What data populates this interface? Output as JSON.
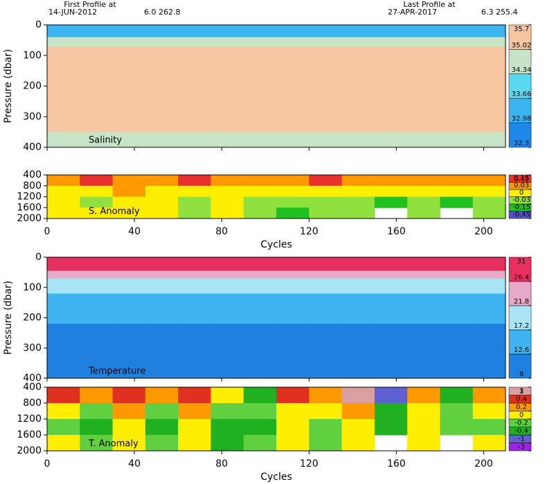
{
  "header": {
    "first_title": "First Profile at",
    "first_date": "14-JUN-2012",
    "first_pos": "6.0 262.8",
    "last_title": "Last Profile at",
    "last_date": "27-APR-2017",
    "last_pos": "6.3 255.4"
  },
  "chart_data": [
    {
      "type": "heatmap",
      "label": "Salinity",
      "ylabel": "Pressure (dbar)",
      "xlim": [
        0,
        210
      ],
      "xticks": [
        0,
        40,
        80,
        120,
        160,
        200
      ],
      "ylim": [
        400,
        0
      ],
      "yticks": [
        0,
        100,
        200,
        300,
        400
      ],
      "x_edges": [
        0,
        15,
        30,
        45,
        60,
        75,
        90,
        105,
        120,
        135,
        150,
        165,
        180,
        195,
        210
      ],
      "y_edges": [
        0,
        40,
        70,
        120,
        250,
        350,
        400
      ],
      "z": [
        [
          33.4,
          33.5,
          33.3,
          33.6,
          33.4,
          33.2,
          33.5,
          33.6,
          33.3,
          33.4,
          33.5,
          33.3,
          33.4,
          33.5
        ],
        [
          34.5,
          34.7,
          34.6,
          34.4,
          34.8,
          34.6,
          34.5,
          34.7,
          34.6,
          34.5,
          34.8,
          34.6,
          34.7,
          34.5
        ],
        [
          35.1,
          35.2,
          35.1,
          35.3,
          35.2,
          35.1,
          35.2,
          35.1,
          35.2,
          35.3,
          35.1,
          35.2,
          35.1,
          35.2
        ],
        [
          35.2,
          35.3,
          35.2,
          35.2,
          35.3,
          35.2,
          35.3,
          35.2,
          35.2,
          35.3,
          35.2,
          35.3,
          35.2,
          35.2
        ],
        [
          35.1,
          35.1,
          35.2,
          35.1,
          35.1,
          35.2,
          35.1,
          35.1,
          35.1,
          35.2,
          35.1,
          35.1,
          35.2,
          35.1
        ],
        [
          34.9,
          35.0,
          34.8,
          35.0,
          34.9,
          35.0,
          34.9,
          34.8,
          35.0,
          34.9,
          35.0,
          34.9,
          34.8,
          34.9
        ]
      ],
      "colorbar": {
        "levels": [
          32.3,
          32.98,
          33.66,
          34.34,
          35.02,
          35.7
        ],
        "colors": [
          "#1e88e8",
          "#3cb4f0",
          "#5ad8f0",
          "#c8e4c8",
          "#f5c6a0"
        ]
      }
    },
    {
      "type": "heatmap",
      "label": "S. Anomaly",
      "xlabel": "Cycles",
      "xlim": [
        0,
        210
      ],
      "xticks": [
        0,
        40,
        80,
        120,
        160,
        200
      ],
      "ylim": [
        2000,
        400
      ],
      "yticks": [
        400,
        800,
        1200,
        1600,
        2000
      ],
      "x_edges": [
        0,
        15,
        30,
        45,
        60,
        75,
        90,
        105,
        120,
        135,
        150,
        165,
        180,
        195,
        210
      ],
      "y_edges": [
        400,
        800,
        1200,
        1600,
        2000
      ],
      "z": [
        [
          0.1,
          0.2,
          0.12,
          0.08,
          0.2,
          0.1,
          0.05,
          0.1,
          0.2,
          0.08,
          0.1,
          0.12,
          0.06,
          0.1
        ],
        [
          0.02,
          0.01,
          0.04,
          0.02,
          0.01,
          0.02,
          0.01,
          0.02,
          0.01,
          0.02,
          0.01,
          0.02,
          0.01,
          0.02
        ],
        [
          0.01,
          -0.01,
          0.02,
          0.01,
          -0.02,
          0.01,
          -0.01,
          -0.02,
          -0.01,
          -0.02,
          -0.05,
          -0.02,
          -0.05,
          -0.02
        ],
        [
          0.01,
          0.01,
          0.02,
          0.01,
          -0.01,
          0.01,
          -0.02,
          -0.05,
          -0.02,
          -0.01,
          null,
          -0.02,
          null,
          -0.01
        ]
      ],
      "colorbar": {
        "levels": [
          -0.45,
          -0.15,
          -0.03,
          0,
          0.03,
          0.15,
          0.45
        ],
        "colors": [
          "#5050d0",
          "#20c020",
          "#90e040",
          "#ffee00",
          "#ff9900",
          "#e83030"
        ]
      }
    },
    {
      "type": "heatmap",
      "label": "Temperature",
      "ylabel": "Pressure (dbar)",
      "xlim": [
        0,
        210
      ],
      "xticks": [
        0,
        40,
        80,
        120,
        160,
        200
      ],
      "ylim": [
        400,
        0
      ],
      "yticks": [
        0,
        100,
        200,
        300,
        400
      ],
      "x_edges": [
        0,
        15,
        30,
        45,
        60,
        75,
        90,
        105,
        120,
        135,
        150,
        165,
        180,
        195,
        210
      ],
      "y_edges": [
        0,
        45,
        70,
        120,
        220,
        330,
        400
      ],
      "z": [
        [
          28.5,
          28.8,
          28.4,
          28.9,
          28.6,
          28.3,
          28.7,
          28.9,
          28.5,
          28.6,
          28.8,
          28.4,
          28.6,
          28.7
        ],
        [
          23.0,
          22.5,
          24.0,
          22.8,
          23.5,
          22.2,
          23.8,
          22.6,
          23.1,
          22.4,
          23.6,
          22.9,
          23.3,
          22.7
        ],
        [
          17.8,
          18.2,
          17.5,
          18.6,
          17.9,
          18.4,
          17.6,
          18.1,
          17.4,
          18.3,
          17.7,
          18.5,
          17.9,
          18.0
        ],
        [
          14.2,
          13.8,
          14.6,
          14.0,
          13.6,
          14.4,
          14.1,
          13.9,
          13.4,
          14.3,
          14.0,
          13.7,
          14.5,
          14.1
        ],
        [
          12.0,
          11.6,
          12.2,
          11.8,
          11.4,
          12.1,
          11.9,
          11.5,
          11.2,
          12.0,
          11.7,
          11.8,
          12.1,
          11.6
        ],
        [
          10.8,
          10.5,
          11.0,
          10.6,
          10.2,
          10.9,
          10.7,
          10.4,
          10.1,
          10.8,
          10.5,
          10.6,
          10.9,
          10.4
        ]
      ],
      "colorbar": {
        "levels": [
          8,
          12.6,
          17.2,
          21.8,
          26.4,
          31
        ],
        "colors": [
          "#2080e0",
          "#40b4f0",
          "#a8e4f4",
          "#e8a8c8",
          "#e83060"
        ]
      }
    },
    {
      "type": "heatmap",
      "label": "T. Anomaly",
      "xlabel": "Cycles",
      "xlim": [
        0,
        210
      ],
      "xticks": [
        0,
        40,
        80,
        120,
        160,
        200
      ],
      "ylim": [
        2000,
        400
      ],
      "yticks": [
        400,
        800,
        1200,
        1600,
        2000
      ],
      "x_edges": [
        0,
        15,
        30,
        45,
        60,
        75,
        90,
        105,
        120,
        135,
        150,
        165,
        180,
        195,
        210
      ],
      "y_edges": [
        400,
        800,
        1200,
        1600,
        2000
      ],
      "z": [
        [
          0.5,
          0.3,
          0.6,
          0.2,
          0.8,
          0.1,
          -0.3,
          0.4,
          0.3,
          1.2,
          -0.5,
          0.3,
          -0.3,
          0.2
        ],
        [
          0.1,
          -0.1,
          0.2,
          -0.1,
          0.3,
          -0.1,
          -0.2,
          0.1,
          0.1,
          0.3,
          -0.3,
          0.1,
          -0.1,
          0.1
        ],
        [
          -0.1,
          -0.3,
          0.1,
          -0.3,
          0.1,
          -0.3,
          -0.3,
          0.1,
          -0.1,
          0.1,
          -0.3,
          0.1,
          -0.1,
          -0.1
        ],
        [
          0.1,
          -0.1,
          0.1,
          -0.1,
          0.1,
          -0.3,
          -0.1,
          0.1,
          -0.1,
          0.1,
          null,
          0.1,
          null,
          0.1
        ]
      ],
      "colorbar": {
        "levels": [
          -3,
          -1,
          -0.4,
          -0.2,
          0,
          0.2,
          0.4,
          1,
          3
        ],
        "colors": [
          "#a020f0",
          "#6060d0",
          "#20b020",
          "#60d040",
          "#ffee00",
          "#ff9900",
          "#e03020",
          "#d8a0a0"
        ]
      }
    }
  ]
}
